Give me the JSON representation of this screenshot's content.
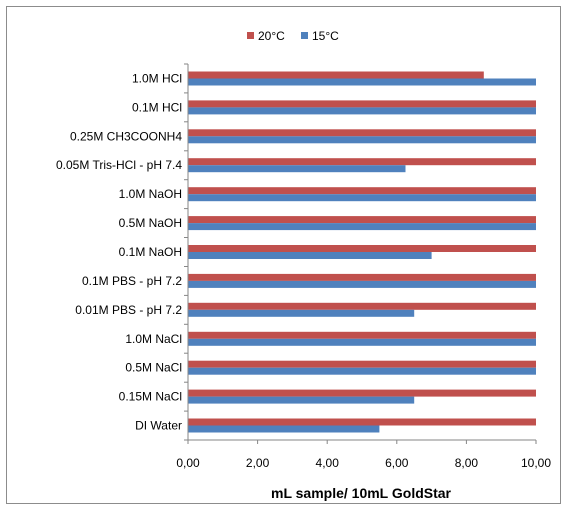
{
  "chart_data": {
    "type": "bar",
    "orientation": "horizontal",
    "categories": [
      "1.0M HCl",
      "0.1M HCl",
      "0.25M CH3COONH4",
      "0.05M Tris-HCl - pH 7.4",
      "1.0M NaOH",
      "0.5M NaOH",
      "0.1M NaOH",
      "0.1M PBS - pH 7.2",
      "0.01M PBS - pH 7.2",
      "1.0M NaCl",
      "0.5M NaCl",
      "0.15M NaCl",
      "DI Water"
    ],
    "series": [
      {
        "name": "20°C",
        "color": "#c0504d",
        "values": [
          8.5,
          10,
          10,
          10,
          10,
          10,
          10,
          10,
          10,
          10,
          10,
          10,
          10
        ]
      },
      {
        "name": "15°C",
        "color": "#4f81bd",
        "values": [
          10,
          10,
          10,
          6.25,
          10,
          10,
          7.0,
          10,
          6.5,
          10,
          10,
          6.5,
          5.5
        ]
      }
    ],
    "xlim": [
      0,
      10
    ],
    "xticks": [
      "0,00",
      "2,00",
      "4,00",
      "6,00",
      "8,00",
      "10,00"
    ],
    "xlabel": "mL sample/ 10mL GoldStar",
    "ylabel": "",
    "title": "",
    "legend_position": "top",
    "grid": false
  }
}
